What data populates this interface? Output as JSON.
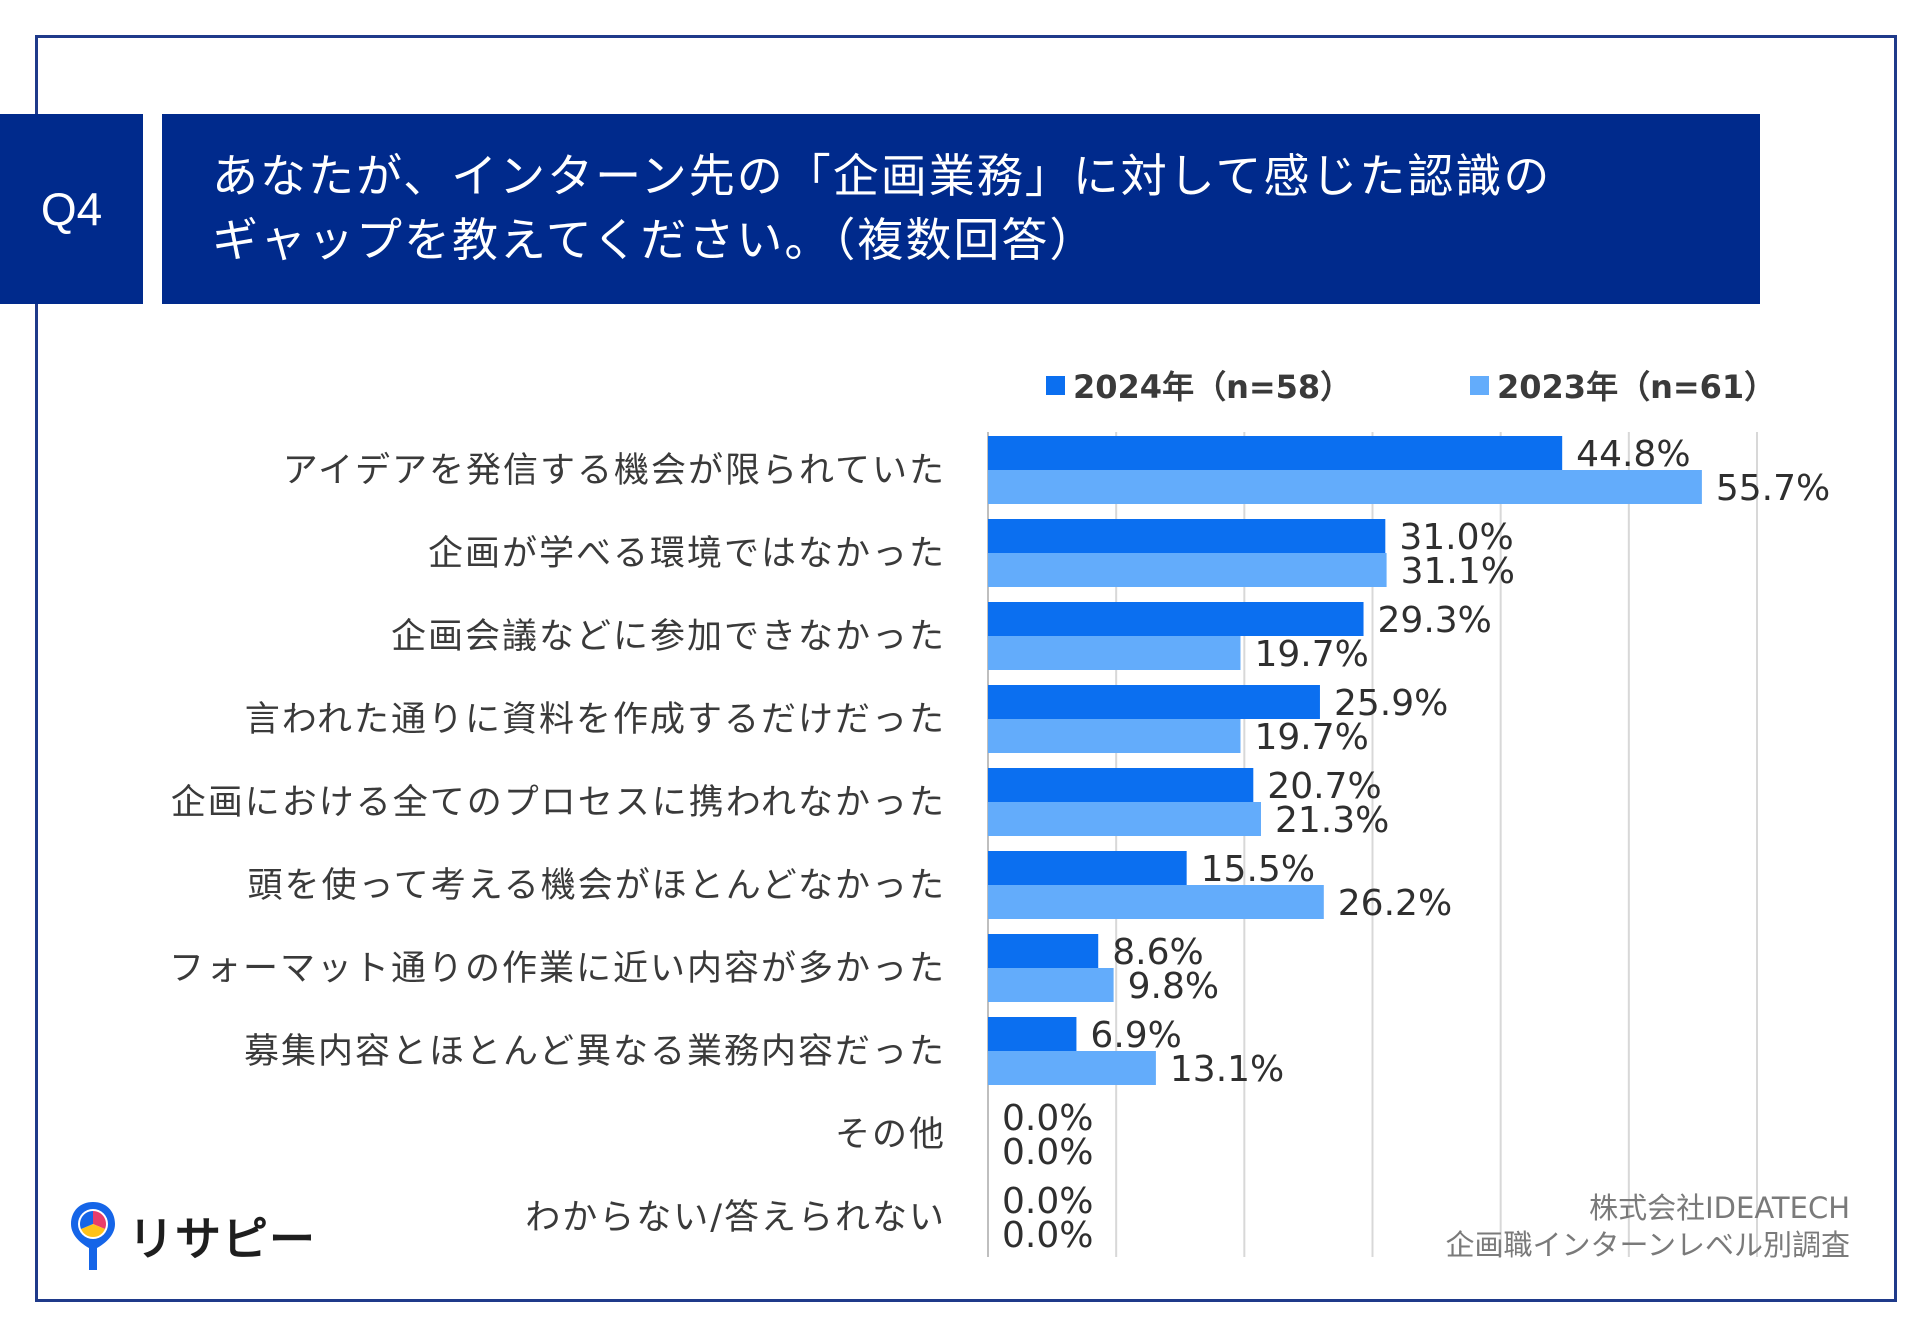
{
  "header": {
    "q_label": "Q4",
    "title_line1": "あなたが、インターン先の「企画業務」に対して感じた認識の",
    "title_line2": "ギャップを教えてください。（複数回答）"
  },
  "colors": {
    "brand": "#002a8c",
    "series_2024": "#0b6ff0",
    "series_2023": "#63acfb",
    "grid": "#d8d8d8"
  },
  "chart_data": {
    "type": "bar",
    "orientation": "horizontal",
    "categories": [
      "アイデアを発信する機会が限られていた",
      "企画が学べる環境ではなかった",
      "企画会議などに参加できなかった",
      "言われた通りに資料を作成するだけだった",
      "企画における全てのプロセスに携われなかった",
      "頭を使って考える機会がほとんどなかった",
      "フォーマット通りの作業に近い内容が多かった",
      "募集内容とほとんど異なる業務内容だった",
      "その他",
      "わからない/答えられない"
    ],
    "series": [
      {
        "name": "2024年（n=58）",
        "values": [
          44.8,
          31.0,
          29.3,
          25.9,
          20.7,
          15.5,
          8.6,
          6.9,
          0.0,
          0.0
        ],
        "labels": [
          "44.8%",
          "31.0%",
          "29.3%",
          "25.9%",
          "20.7%",
          "15.5%",
          "8.6%",
          "6.9%",
          "0.0%",
          "0.0%"
        ]
      },
      {
        "name": "2023年（n=61）",
        "values": [
          55.7,
          31.1,
          19.7,
          19.7,
          21.3,
          26.2,
          9.8,
          13.1,
          0.0,
          0.0
        ],
        "labels": [
          "55.7%",
          "31.1%",
          "19.7%",
          "19.7%",
          "21.3%",
          "26.2%",
          "9.8%",
          "13.1%",
          "0.0%",
          "0.0%"
        ]
      }
    ],
    "xlim": [
      0,
      60
    ],
    "grid_step": 10,
    "grid": true,
    "legend_position": "top-right"
  },
  "credit": {
    "line1": "株式会社IDEATECH",
    "line2": "企画職インターンレベル別調査"
  },
  "logo": {
    "text": "リサピー"
  }
}
